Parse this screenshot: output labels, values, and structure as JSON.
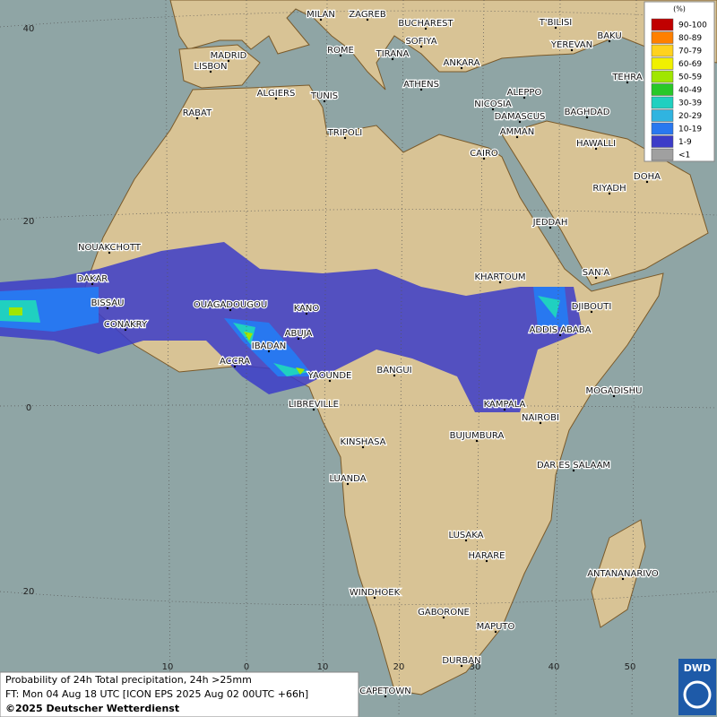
{
  "map": {
    "legend": {
      "title": "(%)",
      "entries": [
        {
          "label": "90-100",
          "color": "#c00000"
        },
        {
          "label": "80-89",
          "color": "#ff8000"
        },
        {
          "label": "70-79",
          "color": "#ffd21e"
        },
        {
          "label": "60-69",
          "color": "#f0f000"
        },
        {
          "label": "50-59",
          "color": "#a0e600"
        },
        {
          "label": "40-49",
          "color": "#28c828"
        },
        {
          "label": "30-39",
          "color": "#20d0c0"
        },
        {
          "label": "20-29",
          "color": "#30b4e0"
        },
        {
          "label": "10-19",
          "color": "#2878f0"
        },
        {
          "label": "1-9",
          "color": "#3c3cc8"
        },
        {
          "label": "<1",
          "color": "#a0a0a0"
        }
      ]
    },
    "cities": [
      "MILAN",
      "ZAGREB",
      "BUCHAREST",
      "T'BILISI",
      "BAKU",
      "ROME",
      "SOFIYA",
      "YEREVAN",
      "TEHRA",
      "LISBON",
      "MADRID",
      "TIRANA",
      "ANKARA",
      "ATHENS",
      "ALGIERS",
      "TUNIS",
      "ALEPPO",
      "RABAT",
      "NICOSIA",
      "BAGHDAD",
      "TRIPOLI",
      "DAMASCUS",
      "AMMAN",
      "HAWALLI",
      "CAIRO",
      "DOHA",
      "RIYADH",
      "JEDDAH",
      "NOUAKCHOTT",
      "DAKAR",
      "SAN'A",
      "BISSAU",
      "KHARTOUM",
      "OUAGADOUGOU",
      "KANO",
      "DJIBOUTI",
      "CONAKRY",
      "ABUJA",
      "ADDIS ABABA",
      "IBADAN",
      "ACCRA",
      "YAOUNDE",
      "BANGUI",
      "MOGADISHU",
      "LIBREVILLE",
      "KAMPALA",
      "NAIROBI",
      "KINSHASA",
      "BUJUMBURA",
      "DAR ES SALAAM",
      "LUANDA",
      "LUSAKA",
      "HARARE",
      "ANTANANARIVO",
      "WINDHOEK",
      "GABORONE",
      "MAPUTO",
      "DURBAN",
      "CAPETOWN"
    ],
    "lat_labels": [
      40,
      20,
      0,
      20
    ],
    "lon_labels": [
      10,
      0,
      10,
      20,
      30,
      40,
      50
    ],
    "footer": [
      "Probability of 24h Total precipitation, 24h >25mm",
      "FT: Mon 04 Aug 18 UTC [ICON EPS 2025 Aug 02 00UTC +66h]",
      "©2025 Deutscher Wetterdienst"
    ],
    "logo": "DWD"
  }
}
